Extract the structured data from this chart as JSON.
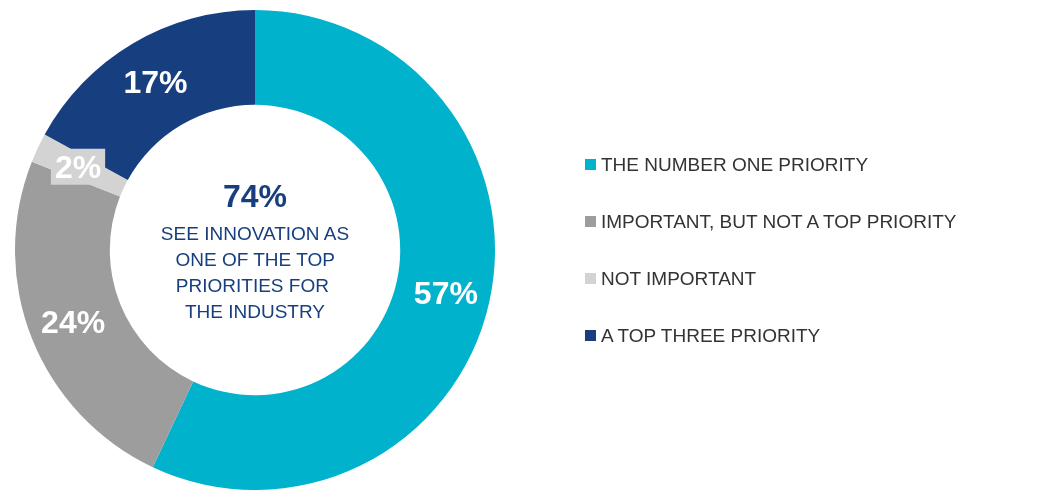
{
  "chart_data": {
    "type": "donut",
    "categories": [
      "THE NUMBER ONE PRIORITY",
      "IMPORTANT, BUT NOT A TOP PRIORITY",
      "NOT IMPORTANT",
      "A TOP THREE PRIORITY"
    ],
    "values": [
      57,
      24,
      2,
      17
    ],
    "colors": [
      "#00b2cc",
      "#9d9d9d",
      "#d3d3d3",
      "#173f80"
    ],
    "value_labels": [
      "57%",
      "24%",
      "2%",
      "17%"
    ],
    "annotations": [
      "74%",
      "SEE INNOVATION AS ONE OF THE TOP PRIORITIES FOR THE INDUSTRY"
    ],
    "legend": "right"
  }
}
